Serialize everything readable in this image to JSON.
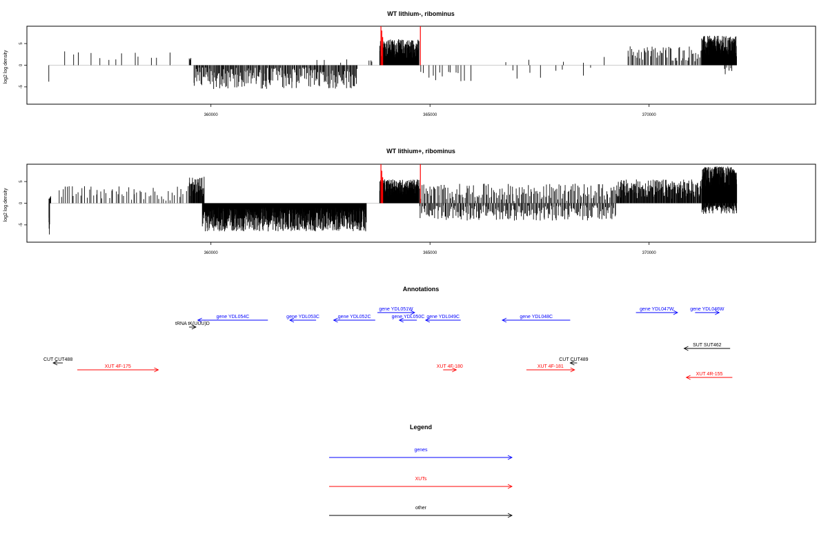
{
  "chart_data": [
    {
      "type": "bar",
      "title": "WT lithium-, ribominus",
      "ylabel": "log2 log density",
      "xlim": [
        355800,
        373800
      ],
      "ylim": [
        -9,
        9
      ],
      "xticks": [
        360000,
        365000,
        370000
      ],
      "yticks": [
        -5,
        0,
        5
      ],
      "grid": false,
      "highlight_color": "#ff0000",
      "bar_color": "#000000",
      "highlight_bars": [
        {
          "x": 363880,
          "value": 9
        },
        {
          "x": 363900,
          "value": 8
        },
        {
          "x": 363920,
          "value": 6.5
        },
        {
          "x": 364780,
          "value": 9
        }
      ],
      "regions": [
        {
          "start": 356300,
          "end": 356300,
          "min": -3.8,
          "max": -3.8,
          "density": 1
        },
        {
          "start": 356550,
          "end": 359100,
          "min": 0.5,
          "max": 3.2,
          "density": 0.005
        },
        {
          "start": 359500,
          "end": 359550,
          "min": 0.8,
          "max": 2.3,
          "density": 0.08
        },
        {
          "start": 359600,
          "end": 363350,
          "min": -5.5,
          "max": -0.5,
          "density": 0.06
        },
        {
          "start": 362300,
          "end": 363300,
          "min": 0.5,
          "max": 2,
          "density": 0.004
        },
        {
          "start": 363600,
          "end": 363700,
          "min": 0.5,
          "max": 1.5,
          "density": 0.03
        },
        {
          "start": 363850,
          "end": 364750,
          "min": 1.5,
          "max": 6,
          "density": 0.2
        },
        {
          "start": 364750,
          "end": 365950,
          "min": -4,
          "max": -0.5,
          "density": 0.012
        },
        {
          "start": 366700,
          "end": 368800,
          "min": -3.2,
          "max": -0.5,
          "density": 0.004
        },
        {
          "start": 366700,
          "end": 369200,
          "min": 0.5,
          "max": 2,
          "density": 0.002
        },
        {
          "start": 369500,
          "end": 371200,
          "min": 0.8,
          "max": 4.5,
          "density": 0.035
        },
        {
          "start": 371200,
          "end": 372000,
          "min": 1.5,
          "max": 6.8,
          "density": 0.22
        },
        {
          "start": 371700,
          "end": 371900,
          "min": -2.5,
          "max": -0.5,
          "density": 0.03
        }
      ]
    },
    {
      "type": "bar",
      "title": "WT lithium+, ribominus",
      "ylabel": "log2 log density",
      "xlim": [
        355800,
        373800
      ],
      "ylim": [
        -9,
        9
      ],
      "xticks": [
        360000,
        365000,
        370000
      ],
      "yticks": [
        -5,
        0,
        5
      ],
      "grid": false,
      "highlight_color": "#ff0000",
      "bar_color": "#000000",
      "highlight_bars": [
        {
          "x": 363880,
          "value": 9
        },
        {
          "x": 363900,
          "value": 7.5
        },
        {
          "x": 363920,
          "value": 6
        },
        {
          "x": 364780,
          "value": 9
        }
      ],
      "regions": [
        {
          "start": 356300,
          "end": 356320,
          "min": -8.2,
          "max": -3,
          "density": 0.3
        },
        {
          "start": 356300,
          "end": 356350,
          "min": 1,
          "max": 1.8,
          "density": 0.1
        },
        {
          "start": 356500,
          "end": 359500,
          "min": 0.5,
          "max": 4,
          "density": 0.02
        },
        {
          "start": 359500,
          "end": 359850,
          "min": 1.5,
          "max": 6.2,
          "density": 0.1
        },
        {
          "start": 359800,
          "end": 363550,
          "min": -6.5,
          "max": -1,
          "density": 0.2
        },
        {
          "start": 363850,
          "end": 364750,
          "min": 1.5,
          "max": 5.5,
          "density": 0.25
        },
        {
          "start": 364750,
          "end": 369250,
          "min": -4,
          "max": -0.5,
          "density": 0.05
        },
        {
          "start": 364750,
          "end": 369250,
          "min": 0.5,
          "max": 4.5,
          "density": 0.035
        },
        {
          "start": 369250,
          "end": 371200,
          "min": 1,
          "max": 5.5,
          "density": 0.09
        },
        {
          "start": 371200,
          "end": 372000,
          "min": 2,
          "max": 8.5,
          "density": 0.35
        },
        {
          "start": 371200,
          "end": 372000,
          "min": -2.5,
          "max": -0.5,
          "density": 0.1
        }
      ]
    },
    {
      "type": "annotation-track",
      "title": "Annotations",
      "xlim": [
        355800,
        373800
      ],
      "features": [
        {
          "label": "gene YDL054C",
          "start": 359700,
          "end": 361300,
          "row": "genes-1",
          "direction": "left",
          "category": "genes"
        },
        {
          "label": "gene YDL053C",
          "start": 361800,
          "end": 362400,
          "row": "genes-1",
          "direction": "left",
          "category": "genes"
        },
        {
          "label": "gene YDL052C",
          "start": 362800,
          "end": 363750,
          "row": "genes-1",
          "direction": "left",
          "category": "genes"
        },
        {
          "label": "gene YDL051W",
          "start": 363800,
          "end": 364650,
          "row": "genes-0",
          "direction": "right",
          "category": "genes"
        },
        {
          "label": "gene YDL050C",
          "start": 364300,
          "end": 364700,
          "row": "genes-1",
          "direction": "left",
          "category": "genes"
        },
        {
          "label": "gene YDL049C",
          "start": 364900,
          "end": 365700,
          "row": "genes-1",
          "direction": "left",
          "category": "genes"
        },
        {
          "label": "gene YDL048C",
          "start": 366650,
          "end": 368200,
          "row": "genes-1",
          "direction": "left",
          "category": "genes"
        },
        {
          "label": "gene YDL047W",
          "start": 369700,
          "end": 370650,
          "row": "genes-0",
          "direction": "right",
          "category": "genes"
        },
        {
          "label": "gene YDL046W",
          "start": 371050,
          "end": 371600,
          "row": "genes-0",
          "direction": "right",
          "category": "genes"
        },
        {
          "label": "tRNA tK(UUU)D",
          "start": 359500,
          "end": 359600,
          "row": "other-0",
          "direction": "right",
          "category": "other"
        },
        {
          "label": "SUT SUT462",
          "start": 370800,
          "end": 371850,
          "row": "other-1",
          "direction": "left",
          "category": "other"
        },
        {
          "label": "CUT CUT488",
          "start": 356400,
          "end": 356620,
          "row": "other-2",
          "direction": "left",
          "category": "other"
        },
        {
          "label": "CUT CUT489",
          "start": 368200,
          "end": 368250,
          "row": "other-2",
          "direction": "left",
          "category": "other"
        },
        {
          "label": "XUT 4F-175",
          "start": 356950,
          "end": 358800,
          "row": "xut-0",
          "direction": "right",
          "category": "XUTs"
        },
        {
          "label": "XUT 4F-180",
          "start": 365300,
          "end": 365600,
          "row": "xut-0",
          "direction": "right",
          "category": "XUTs"
        },
        {
          "label": "XUT 4F-181",
          "start": 367200,
          "end": 368300,
          "row": "xut-0",
          "direction": "right",
          "category": "XUTs"
        },
        {
          "label": "XUT 4R-155",
          "start": 370850,
          "end": 371900,
          "row": "xut-1",
          "direction": "left",
          "category": "XUTs"
        }
      ]
    }
  ],
  "legend": {
    "title": "Legend",
    "items": [
      {
        "label": "genes",
        "color": "#0000ff"
      },
      {
        "label": "XUTs",
        "color": "#ff0000"
      },
      {
        "label": "other",
        "color": "#000000"
      }
    ]
  },
  "category_colors": {
    "genes": "#0000ff",
    "XUTs": "#ff0000",
    "other": "#000000"
  }
}
